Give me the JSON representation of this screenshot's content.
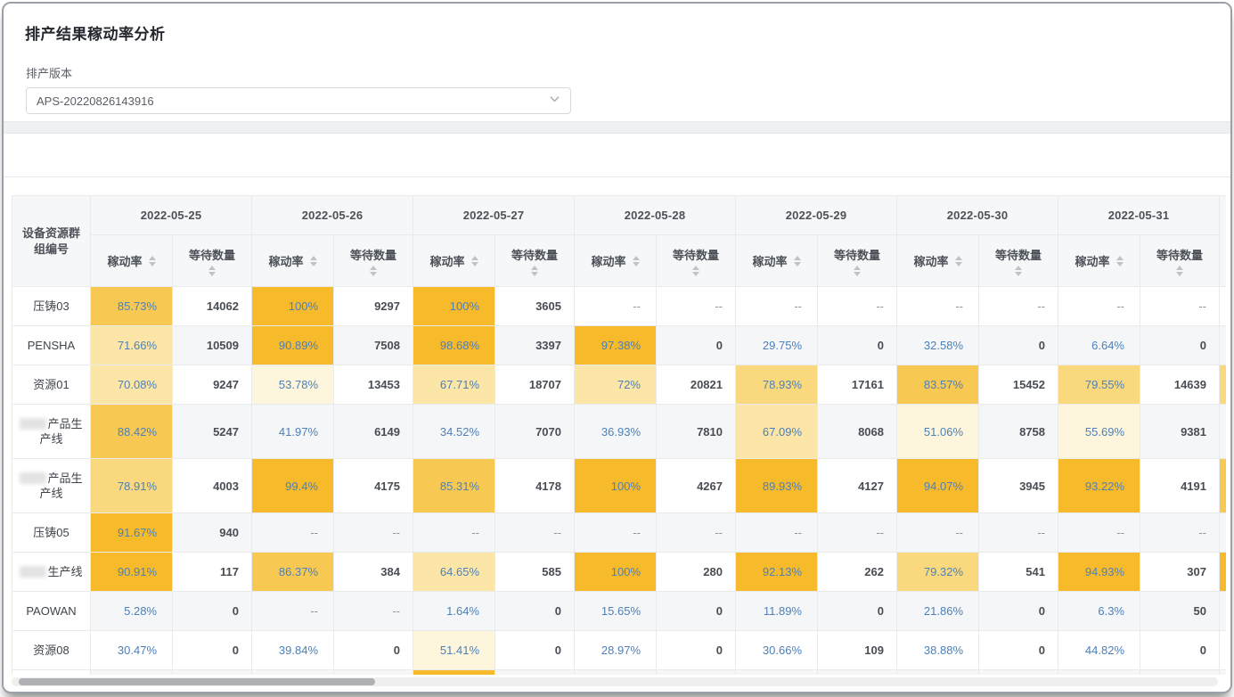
{
  "page": {
    "title": "排产结果稼动率分析"
  },
  "filter": {
    "label": "排产版本",
    "value": "APS-20220826143916"
  },
  "colors": {
    "heat_strong": "#f7ba2a",
    "heat_medium": "#f8c952",
    "heat_light": "#fad97e",
    "heat_pale": "#fbe6a8",
    "heat_faint": "#fdf5dc",
    "rate_text": "#4d80b8",
    "count_text": "#484d54",
    "empty_text": "#8f949b",
    "header_bg": "#f6f7f9",
    "stripe_bg": "#f5f6f7",
    "border": "#e9eaec"
  },
  "table": {
    "row_header": "设备资源群组编号",
    "dates": [
      "2022-05-25",
      "2022-05-26",
      "2022-05-27",
      "2022-05-28",
      "2022-05-29",
      "2022-05-30",
      "2022-05-31"
    ],
    "subcols": {
      "rate": "稼动率",
      "wait": "等待数量"
    },
    "empty_value": "--",
    "rows": [
      {
        "label": "压铸03",
        "prefix_redacted": false,
        "overflow_fill": null,
        "cells": [
          [
            "85.73%",
            "14062"
          ],
          [
            "100%",
            "9297"
          ],
          [
            "100%",
            "3605"
          ],
          [
            "--",
            "--"
          ],
          [
            "--",
            "--"
          ],
          [
            "--",
            "--"
          ],
          [
            "--",
            "--"
          ]
        ]
      },
      {
        "label": "PENSHA",
        "prefix_redacted": false,
        "overflow_fill": null,
        "cells": [
          [
            "71.66%",
            "10509"
          ],
          [
            "90.89%",
            "7508"
          ],
          [
            "98.68%",
            "3397"
          ],
          [
            "97.38%",
            "0"
          ],
          [
            "29.75%",
            "0"
          ],
          [
            "32.58%",
            "0"
          ],
          [
            "6.64%",
            "0"
          ]
        ]
      },
      {
        "label": "资源01",
        "prefix_redacted": false,
        "overflow_fill": "#fad97e",
        "cells": [
          [
            "70.08%",
            "9247"
          ],
          [
            "53.78%",
            "13453"
          ],
          [
            "67.71%",
            "18707"
          ],
          [
            "72%",
            "20821"
          ],
          [
            "78.93%",
            "17161"
          ],
          [
            "83.57%",
            "15452"
          ],
          [
            "79.55%",
            "14639"
          ]
        ]
      },
      {
        "label": "产品生产线",
        "prefix_redacted": true,
        "overflow_fill": null,
        "cells": [
          [
            "88.42%",
            "5247"
          ],
          [
            "41.97%",
            "6149"
          ],
          [
            "34.52%",
            "7070"
          ],
          [
            "36.93%",
            "7810"
          ],
          [
            "67.09%",
            "8068"
          ],
          [
            "51.06%",
            "8758"
          ],
          [
            "55.69%",
            "9381"
          ]
        ]
      },
      {
        "label": "产品生产线",
        "prefix_redacted": true,
        "overflow_fill": "#f8c952",
        "cells": [
          [
            "78.91%",
            "4003"
          ],
          [
            "99.4%",
            "4175"
          ],
          [
            "85.31%",
            "4178"
          ],
          [
            "100%",
            "4267"
          ],
          [
            "89.93%",
            "4127"
          ],
          [
            "94.07%",
            "3945"
          ],
          [
            "93.22%",
            "4191"
          ]
        ]
      },
      {
        "label": "压铸05",
        "prefix_redacted": false,
        "overflow_fill": null,
        "cells": [
          [
            "91.67%",
            "940"
          ],
          [
            "--",
            "--"
          ],
          [
            "--",
            "--"
          ],
          [
            "--",
            "--"
          ],
          [
            "--",
            "--"
          ],
          [
            "--",
            "--"
          ],
          [
            "--",
            "--"
          ]
        ]
      },
      {
        "label": "生产线",
        "prefix_redacted": true,
        "overflow_fill": "#f7ba2a",
        "cells": [
          [
            "90.91%",
            "117"
          ],
          [
            "86.37%",
            "384"
          ],
          [
            "64.65%",
            "585"
          ],
          [
            "100%",
            "280"
          ],
          [
            "92.13%",
            "262"
          ],
          [
            "79.32%",
            "541"
          ],
          [
            "94.93%",
            "307"
          ]
        ]
      },
      {
        "label": "PAOWAN",
        "prefix_redacted": false,
        "overflow_fill": null,
        "cells": [
          [
            "5.28%",
            "0"
          ],
          [
            "--",
            "--"
          ],
          [
            "1.64%",
            "0"
          ],
          [
            "15.65%",
            "0"
          ],
          [
            "11.89%",
            "0"
          ],
          [
            "21.86%",
            "0"
          ],
          [
            "6.3%",
            "50"
          ]
        ]
      },
      {
        "label": "资源08",
        "prefix_redacted": false,
        "overflow_fill": null,
        "cells": [
          [
            "30.47%",
            "0"
          ],
          [
            "39.84%",
            "0"
          ],
          [
            "51.41%",
            "0"
          ],
          [
            "28.97%",
            "0"
          ],
          [
            "30.66%",
            "109"
          ],
          [
            "38.88%",
            "0"
          ],
          [
            "44.82%",
            "0"
          ]
        ]
      }
    ],
    "partial_row": {
      "rate_fills": [
        null,
        null,
        "#f7ba2a",
        null,
        null,
        null,
        null
      ]
    }
  }
}
